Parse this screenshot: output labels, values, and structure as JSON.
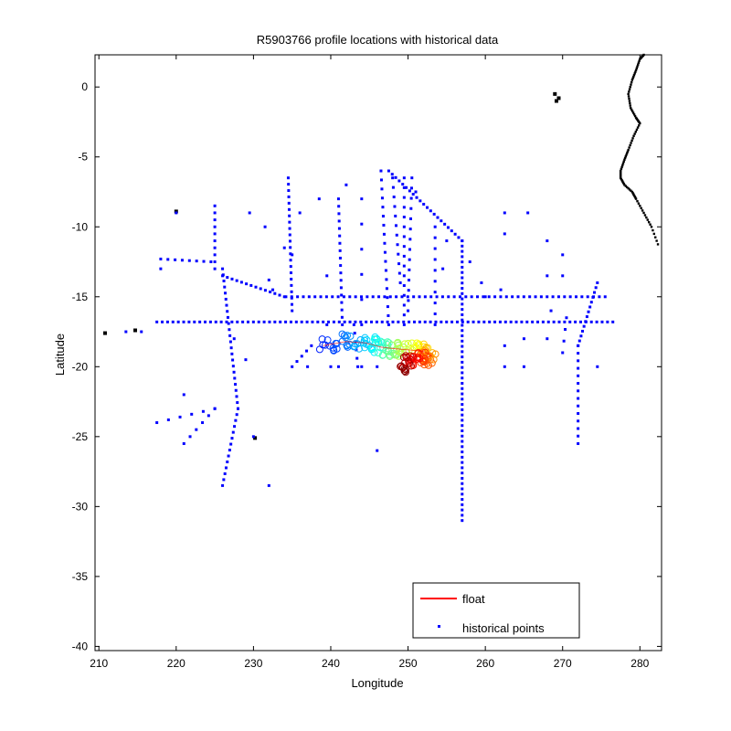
{
  "chart_data": {
    "type": "scatter",
    "title": "R5903766 profile locations with historical data",
    "xlabel": "Longitude",
    "ylabel": "Latitude",
    "xlim": [
      209.5,
      282.8
    ],
    "ylim": [
      -40.3,
      2.3
    ],
    "xticks": [
      210,
      220,
      230,
      240,
      250,
      260,
      270,
      280
    ],
    "yticks": [
      0,
      -5,
      -10,
      -15,
      -20,
      -25,
      -30,
      -35,
      -40
    ],
    "grid": false,
    "legend_position": "bottom-right",
    "colors": {
      "historical": "#0000ff",
      "coast": "#000000",
      "float_line": "#ff0000"
    },
    "legend": [
      {
        "label": "float",
        "marker": "line",
        "color": "#ff0000"
      },
      {
        "label": "historical points",
        "marker": "dot",
        "color": "#0000ff"
      }
    ],
    "series": [
      {
        "name": "historical points",
        "segments": [
          {
            "from": [
              217.5,
              -16.8
            ],
            "to": [
              276.5,
              -16.8
            ],
            "n": 86
          },
          {
            "from": [
              234.2,
              -15.0
            ],
            "to": [
              275.5,
              -15.0
            ],
            "n": 56
          },
          {
            "from": [
              257.0,
              -11.0
            ],
            "to": [
              257.0,
              -31.0
            ],
            "n": 54
          },
          {
            "from": [
              247.5,
              -6.0
            ],
            "to": [
              257.0,
              -11.0
            ],
            "n": 22
          },
          {
            "from": [
              225.0,
              -8.5
            ],
            "to": [
              225.0,
              -13.0
            ],
            "n": 10
          },
          {
            "from": [
              226.0,
              -13.0
            ],
            "to": [
              228.0,
              -23.0
            ],
            "n": 24
          },
          {
            "from": [
              228.0,
              -23.0
            ],
            "to": [
              226.0,
              -28.5
            ],
            "n": 14
          },
          {
            "from": [
              226.0,
              -13.5
            ],
            "to": [
              234.0,
              -15.0
            ],
            "n": 14
          },
          {
            "from": [
              218.0,
              -12.3
            ],
            "to": [
              224.5,
              -12.5
            ],
            "n": 8
          },
          {
            "from": [
              217.5,
              -24.0
            ],
            "to": [
              225.0,
              -23.0
            ],
            "n": 6
          },
          {
            "from": [
              221.0,
              -25.5
            ],
            "to": [
              225.0,
              -23.0
            ],
            "n": 6
          },
          {
            "from": [
              234.5,
              -6.5
            ],
            "to": [
              235.0,
              -16.0
            ],
            "n": 22
          },
          {
            "from": [
              237.5,
              -18.5
            ],
            "to": [
              235.0,
              -20.0
            ],
            "n": 5
          },
          {
            "from": [
              241.0,
              -8.0
            ],
            "to": [
              241.5,
              -17.0
            ],
            "n": 18
          },
          {
            "from": [
              243.0,
              -17.0
            ],
            "to": [
              243.5,
              -20.0
            ],
            "n": 6
          },
          {
            "from": [
              244.0,
              -8.0
            ],
            "to": [
              244.0,
              -17.0
            ],
            "n": 6
          },
          {
            "from": [
              246.5,
              -6.0
            ],
            "to": [
              247.5,
              -17.0
            ],
            "n": 18
          },
          {
            "from": [
              248.0,
              -6.5
            ],
            "to": [
              249.0,
              -14.0
            ],
            "n": 12
          },
          {
            "from": [
              249.5,
              -6.5
            ],
            "to": [
              249.5,
              -17.0
            ],
            "n": 16
          },
          {
            "from": [
              250.5,
              -6.5
            ],
            "to": [
              250.0,
              -16.0
            ],
            "n": 14
          },
          {
            "from": [
              253.5,
              -10.0
            ],
            "to": [
              253.5,
              -17.0
            ],
            "n": 10
          },
          {
            "from": [
              272.0,
              -18.5
            ],
            "to": [
              274.5,
              -14.0
            ],
            "n": 14
          },
          {
            "from": [
              272.0,
              -18.5
            ],
            "to": [
              272.0,
              -25.5
            ],
            "n": 14
          },
          {
            "from": [
              270.5,
              -16.5
            ],
            "to": [
              270.0,
              -19.0
            ],
            "n": 4
          }
        ],
        "points": [
          [
            220.0,
            -9.0
          ],
          [
            229.5,
            -9.0
          ],
          [
            231.5,
            -10.0
          ],
          [
            238.5,
            -8.0
          ],
          [
            239.5,
            -13.5
          ],
          [
            239.5,
            -17.0
          ],
          [
            246.0,
            -26.0
          ],
          [
            232.0,
            -28.5
          ],
          [
            230.0,
            -25.0
          ],
          [
            221.0,
            -22.0
          ],
          [
            218.0,
            -13.0
          ],
          [
            213.5,
            -17.5
          ],
          [
            215.5,
            -17.5
          ],
          [
            237.0,
            -20.0
          ],
          [
            240.0,
            -20.0
          ],
          [
            241.0,
            -20.0
          ],
          [
            244.0,
            -20.0
          ],
          [
            246.0,
            -20.0
          ],
          [
            262.5,
            -9.0
          ],
          [
            262.5,
            -10.5
          ],
          [
            262.0,
            -14.5
          ],
          [
            262.5,
            -18.5
          ],
          [
            262.5,
            -20.0
          ],
          [
            265.5,
            -9.0
          ],
          [
            265.0,
            -18.0
          ],
          [
            265.0,
            -20.0
          ],
          [
            268.0,
            -11.0
          ],
          [
            268.0,
            -13.5
          ],
          [
            268.5,
            -16.0
          ],
          [
            268.0,
            -18.0
          ],
          [
            270.0,
            -12.0
          ],
          [
            270.0,
            -13.5
          ],
          [
            274.5,
            -20.0
          ],
          [
            260.0,
            -15.0
          ],
          [
            255.0,
            -11.0
          ],
          [
            251.0,
            -7.5
          ],
          [
            234.0,
            -11.5
          ],
          [
            229.0,
            -19.5
          ],
          [
            227.5,
            -18.0
          ],
          [
            232.5,
            -14.5
          ],
          [
            232.0,
            -13.8
          ],
          [
            259.5,
            -14.0
          ],
          [
            254.5,
            -13.0
          ],
          [
            258.0,
            -12.5
          ],
          [
            235.0,
            -12.0
          ],
          [
            242.0,
            -7.0
          ],
          [
            236.0,
            -9.0
          ]
        ]
      },
      {
        "name": "float",
        "track": [
          [
            239.0,
            -18.5
          ],
          [
            242.0,
            -18.2
          ],
          [
            244.5,
            -18.3
          ],
          [
            246.5,
            -18.6
          ],
          [
            248.0,
            -18.7
          ],
          [
            250.0,
            -18.8
          ],
          [
            252.0,
            -18.9
          ],
          [
            253.0,
            -19.2
          ],
          [
            251.5,
            -19.5
          ],
          [
            250.0,
            -19.6
          ],
          [
            249.5,
            -20.0
          ]
        ]
      },
      {
        "name": "",
        "coastline": [
          [
            280.5,
            2.3
          ],
          [
            280.0,
            2.0
          ],
          [
            279.5,
            1.2
          ],
          [
            279.0,
            0.5
          ],
          [
            278.5,
            -0.5
          ],
          [
            278.8,
            -1.5
          ],
          [
            279.5,
            -2.2
          ],
          [
            280.0,
            -2.6
          ],
          [
            279.2,
            -3.5
          ],
          [
            278.5,
            -4.5
          ],
          [
            278.0,
            -5.2
          ],
          [
            277.5,
            -6.0
          ],
          [
            277.5,
            -6.5
          ],
          [
            278.0,
            -7.0
          ],
          [
            279.0,
            -7.5
          ],
          [
            279.5,
            -8.0
          ],
          [
            280.5,
            -9.0
          ],
          [
            281.5,
            -10.0
          ],
          [
            282.5,
            -11.5
          ]
        ],
        "black_points": [
          [
            269.0,
            -0.5
          ],
          [
            269.5,
            -0.8
          ],
          [
            269.2,
            -1.0
          ],
          [
            220.0,
            -8.9
          ],
          [
            210.8,
            -17.6
          ],
          [
            214.7,
            -17.4
          ],
          [
            230.2,
            -25.1
          ]
        ]
      }
    ]
  }
}
